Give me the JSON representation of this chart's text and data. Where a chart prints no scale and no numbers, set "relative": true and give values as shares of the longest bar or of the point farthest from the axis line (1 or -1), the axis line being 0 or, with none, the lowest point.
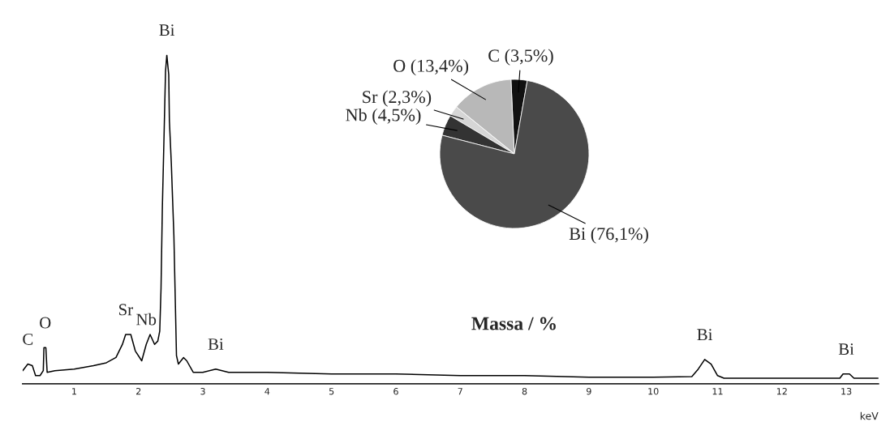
{
  "chart_data": [
    {
      "type": "line",
      "relative": true,
      "xlabel": "keV",
      "xlim": [
        0.2,
        13.5
      ],
      "xticks": [
        1,
        2,
        3,
        4,
        5,
        6,
        7,
        8,
        9,
        10,
        11,
        12,
        13
      ],
      "grid": false,
      "legend": false,
      "x": [
        0.2,
        0.28,
        0.35,
        0.4,
        0.47,
        0.52,
        0.53,
        0.56,
        0.58,
        0.7,
        1.0,
        1.3,
        1.5,
        1.65,
        1.75,
        1.8,
        1.88,
        1.95,
        2.05,
        2.12,
        2.18,
        2.25,
        2.3,
        2.33,
        2.35,
        2.37,
        2.4,
        2.42,
        2.44,
        2.47,
        2.48,
        2.51,
        2.55,
        2.59,
        2.62,
        2.7,
        2.75,
        2.85,
        3.0,
        3.2,
        3.4,
        4.0,
        5.0,
        6.0,
        7.0,
        8.0,
        9.0,
        10.0,
        10.6,
        10.7,
        10.8,
        10.9,
        11.0,
        11.1,
        12.0,
        12.9,
        12.95,
        13.05,
        13.12,
        13.5
      ],
      "series": [
        {
          "color": "#000000",
          "values": [
            0.04,
            0.06,
            0.055,
            0.025,
            0.025,
            0.04,
            0.11,
            0.11,
            0.035,
            0.04,
            0.045,
            0.055,
            0.064,
            0.08,
            0.12,
            0.15,
            0.15,
            0.1,
            0.07,
            0.12,
            0.15,
            0.12,
            0.13,
            0.16,
            0.29,
            0.53,
            0.78,
            0.95,
            1.0,
            0.94,
            0.8,
            0.67,
            0.45,
            0.086,
            0.06,
            0.08,
            0.07,
            0.035,
            0.035,
            0.045,
            0.035,
            0.035,
            0.03,
            0.03,
            0.025,
            0.025,
            0.02,
            0.02,
            0.022,
            0.045,
            0.074,
            0.06,
            0.025,
            0.017,
            0.017,
            0.017,
            0.03,
            0.03,
            0.017,
            0.017
          ]
        }
      ],
      "annotations": [
        {
          "text": "C",
          "x": 0.28,
          "y": 0.06
        },
        {
          "text": "O",
          "x": 0.55,
          "y": 0.11
        },
        {
          "text": "Sr",
          "x": 1.8,
          "y": 0.15
        },
        {
          "text": "Nb",
          "x": 2.12,
          "y": 0.12
        },
        {
          "text": "Bi",
          "x": 2.44,
          "y": 1.0
        },
        {
          "text": "Bi",
          "x": 3.2,
          "y": 0.045
        },
        {
          "text": "Bi",
          "x": 10.8,
          "y": 0.074
        },
        {
          "text": "Bi",
          "x": 13.0,
          "y": 0.03
        }
      ]
    },
    {
      "type": "pie",
      "title": "Massa / %",
      "categories": [
        "C (3,5%)",
        "O (13,4%)",
        "Sr (2,3%)",
        "Nb (4,5%)",
        "Bi (76,1%)"
      ],
      "values": [
        3.5,
        13.4,
        2.3,
        4.5,
        76.1
      ],
      "colors": [
        "#111111",
        "#b8b8b8",
        "#d6d6d6",
        "#333333",
        "#4a4a4a"
      ]
    }
  ]
}
